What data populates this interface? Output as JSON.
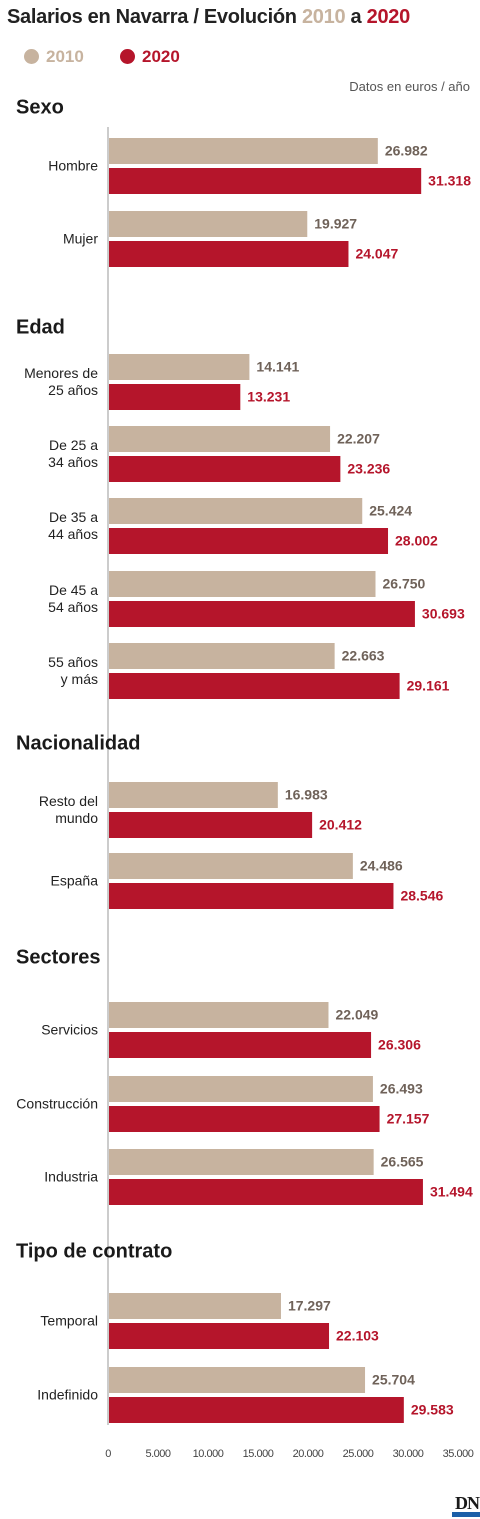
{
  "title": {
    "prefix": "Salarios en Navarra / Evolución",
    "year_a": "2010",
    "joiner": "a",
    "year_b": "2020"
  },
  "legend": [
    {
      "label": "2010",
      "color": "#c7b39f"
    },
    {
      "label": "2020",
      "color": "#b5152b"
    }
  ],
  "units_note": "Datos en euros / año",
  "brand": "DN",
  "chart_data": {
    "type": "bar",
    "orientation": "horizontal",
    "series_names": [
      "2010",
      "2020"
    ],
    "colors": {
      "2010": "#c7b39f",
      "2020": "#b5152b"
    },
    "xlim": [
      0,
      35000
    ],
    "xticks": [
      {
        "value": 0,
        "label": "0"
      },
      {
        "value": 5000,
        "label": "5.000"
      },
      {
        "value": 10000,
        "label": "10.000"
      },
      {
        "value": 15000,
        "label": "15.000"
      },
      {
        "value": 20000,
        "label": "20.000"
      },
      {
        "value": 25000,
        "label": "25.000"
      },
      {
        "value": 30000,
        "label": "30.000"
      },
      {
        "value": 35000,
        "label": "35.000"
      }
    ],
    "groups": [
      {
        "title": "Sexo",
        "categories": [
          {
            "label": [
              "Hombre"
            ],
            "v2010": 26982,
            "v2020": 31318,
            "l2010": "26.982",
            "l2020": "31.318"
          },
          {
            "label": [
              "Mujer"
            ],
            "v2010": 19927,
            "v2020": 24047,
            "l2010": "19.927",
            "l2020": "24.047"
          }
        ]
      },
      {
        "title": "Edad",
        "categories": [
          {
            "label": [
              "Menores de",
              "25 años"
            ],
            "v2010": 14141,
            "v2020": 13231,
            "l2010": "14.141",
            "l2020": "13.231"
          },
          {
            "label": [
              "De 25 a",
              "34 años"
            ],
            "v2010": 22207,
            "v2020": 23236,
            "l2010": "22.207",
            "l2020": "23.236"
          },
          {
            "label": [
              "De 35 a",
              "44 años"
            ],
            "v2010": 25424,
            "v2020": 28002,
            "l2010": "25.424",
            "l2020": "28.002"
          },
          {
            "label": [
              "De 45 a",
              "54 años"
            ],
            "v2010": 26750,
            "v2020": 30693,
            "l2010": "26.750",
            "l2020": "30.693"
          },
          {
            "label": [
              "55 años",
              "y más"
            ],
            "v2010": 22663,
            "v2020": 29161,
            "l2010": "22.663",
            "l2020": "29.161"
          }
        ]
      },
      {
        "title": "Nacionalidad",
        "categories": [
          {
            "label": [
              "Resto del",
              "mundo"
            ],
            "v2010": 16983,
            "v2020": 20412,
            "l2010": "16.983",
            "l2020": "20.412"
          },
          {
            "label": [
              "España"
            ],
            "v2010": 24486,
            "v2020": 28546,
            "l2010": "24.486",
            "l2020": "28.546"
          }
        ]
      },
      {
        "title": "Sectores",
        "categories": [
          {
            "label": [
              "Servicios"
            ],
            "v2010": 22049,
            "v2020": 26306,
            "l2010": "22.049",
            "l2020": "26.306"
          },
          {
            "label": [
              "Construcción"
            ],
            "v2010": 26493,
            "v2020": 27157,
            "l2010": "26.493",
            "l2020": "27.157"
          },
          {
            "label": [
              "Industria"
            ],
            "v2010": 26565,
            "v2020": 31494,
            "l2010": "26.565",
            "l2020": "31.494"
          }
        ]
      },
      {
        "title": "Tipo de contrato",
        "categories": [
          {
            "label": [
              "Temporal"
            ],
            "v2010": 17297,
            "v2020": 22103,
            "l2010": "17.297",
            "l2020": "22.103"
          },
          {
            "label": [
              "Indefinido"
            ],
            "v2010": 25704,
            "v2020": 29583,
            "l2010": "25.704",
            "l2020": "29.583"
          }
        ]
      }
    ]
  }
}
